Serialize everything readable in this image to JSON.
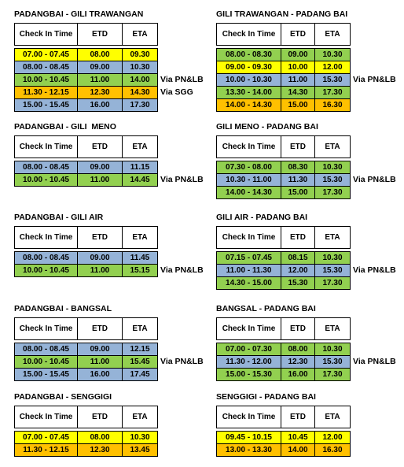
{
  "tables": [
    {
      "title": "PADANGBAI - GILI TRAWANGAN",
      "headers": [
        "Check In Time",
        "ETD",
        "ETA"
      ],
      "rows": [
        {
          "cells": [
            "07.00 - 07.45",
            "08.00",
            "09.30"
          ],
          "color": "#ffff00"
        },
        {
          "cells": [
            "08.00 - 08.45",
            "09.00",
            "10.30"
          ],
          "color": "#95b3d7"
        },
        {
          "cells": [
            "10.00 - 10.45",
            "11.00",
            "14.00"
          ],
          "color": "#92d050",
          "note": "Via PN&LB"
        },
        {
          "cells": [
            "11.30 - 12.15",
            "12.30",
            "14.30"
          ],
          "color": "#ffc000",
          "note": "Via SGG"
        },
        {
          "cells": [
            "15.00 - 15.45",
            "16.00",
            "17.30"
          ],
          "color": "#95b3d7"
        }
      ]
    },
    {
      "title": "GILI TRAWANGAN - PADANG BAI",
      "headers": [
        "Check In Time",
        "ETD",
        "ETA"
      ],
      "rows": [
        {
          "cells": [
            "08.00 - 08.30",
            "09.00",
            "10.30"
          ],
          "color": "#92d050"
        },
        {
          "cells": [
            "09.00 - 09.30",
            "10.00",
            "12.00"
          ],
          "color": "#ffff00"
        },
        {
          "cells": [
            "10.00 - 10.30",
            "11.00",
            "15.30"
          ],
          "color": "#95b3d7",
          "note": "Via PN&LB"
        },
        {
          "cells": [
            "13.30 - 14.00",
            "14.30",
            "17.30"
          ],
          "color": "#92d050"
        },
        {
          "cells": [
            "14.00 - 14.30",
            "15.00",
            "16.30"
          ],
          "color": "#ffc000"
        }
      ]
    },
    {
      "title": "PADANGBAI - GILI  MENO",
      "headers": [
        "Check In Time",
        "ETD",
        "ETA"
      ],
      "rows": [
        {
          "cells": [
            "08.00 - 08.45",
            "09.00",
            "11.15"
          ],
          "color": "#95b3d7"
        },
        {
          "cells": [
            "10.00 - 10.45",
            "11.00",
            "14.45"
          ],
          "color": "#92d050",
          "note": "Via PN&LB"
        }
      ]
    },
    {
      "title": "GILI MENO - PADANG BAI",
      "headers": [
        "Check In Time",
        "ETD",
        "ETA"
      ],
      "rows": [
        {
          "cells": [
            "07.30 - 08.00",
            "08.30",
            "10.30"
          ],
          "color": "#92d050"
        },
        {
          "cells": [
            "10.30 - 11.00",
            "11.30",
            "15.30"
          ],
          "color": "#95b3d7",
          "note": "Via PN&LB"
        },
        {
          "cells": [
            "14.00 - 14.30",
            "15.00",
            "17.30"
          ],
          "color": "#92d050"
        }
      ]
    },
    {
      "title": "PADANGBAI - GILI AIR",
      "headers": [
        "Check In Time",
        "ETD",
        "ETA"
      ],
      "rows": [
        {
          "cells": [
            "08.00 - 08.45",
            "09.00",
            "11.45"
          ],
          "color": "#95b3d7"
        },
        {
          "cells": [
            "10.00 - 10.45",
            "11.00",
            "15.15"
          ],
          "color": "#92d050",
          "note": "Via PN&LB"
        }
      ]
    },
    {
      "title": "GILI AIR - PADANG BAI",
      "headers": [
        "Check In Time",
        "ETD",
        "ETA"
      ],
      "rows": [
        {
          "cells": [
            "07.15 - 07.45",
            "08.15",
            "10.30"
          ],
          "color": "#92d050"
        },
        {
          "cells": [
            "11.00 - 11.30",
            "12.00",
            "15.30"
          ],
          "color": "#95b3d7",
          "note": "Via PN&LB"
        },
        {
          "cells": [
            "14.30 - 15.00",
            "15.30",
            "17.30"
          ],
          "color": "#92d050"
        }
      ]
    },
    {
      "title": "PADANGBAI - BANGSAL",
      "headers": [
        "Check In Time",
        "ETD",
        "ETA"
      ],
      "rows": [
        {
          "cells": [
            "08.00 - 08.45",
            "09.00",
            "12.15"
          ],
          "color": "#95b3d7"
        },
        {
          "cells": [
            "10.00 - 10.45",
            "11.00",
            "15.45"
          ],
          "color": "#92d050",
          "note": "Via PN&LB"
        },
        {
          "cells": [
            "15.00 - 15.45",
            "16.00",
            "17.45"
          ],
          "color": "#95b3d7"
        }
      ]
    },
    {
      "title": "BANGSAL - PADANG BAI",
      "headers": [
        "Check In Time",
        "ETD",
        "ETA"
      ],
      "rows": [
        {
          "cells": [
            "07.00 - 07.30",
            "08.00",
            "10.30"
          ],
          "color": "#92d050"
        },
        {
          "cells": [
            "11.30 - 12.00",
            "12.30",
            "15.30"
          ],
          "color": "#95b3d7",
          "note": "Via PN&LB"
        },
        {
          "cells": [
            "15.00 - 15.30",
            "16.00",
            "17.30"
          ],
          "color": "#92d050"
        }
      ]
    },
    {
      "title": "PADANGBAI - SENGGIGI",
      "headers": [
        "Check In Time",
        "ETD",
        "ETA"
      ],
      "rows": [
        {
          "cells": [
            "07.00 - 07.45",
            "08.00",
            "10.30"
          ],
          "color": "#ffff00"
        },
        {
          "cells": [
            "11.30 - 12.15",
            "12.30",
            "13.45"
          ],
          "color": "#ffc000"
        }
      ]
    },
    {
      "title": "SENGGIGI - PADANG BAI",
      "headers": [
        "Check In Time",
        "ETD",
        "ETA"
      ],
      "rows": [
        {
          "cells": [
            "09.45 - 10.15",
            "10.45",
            "12.00"
          ],
          "color": "#ffff00"
        },
        {
          "cells": [
            "13.00 - 13.30",
            "14.00",
            "16.30"
          ],
          "color": "#ffc000"
        }
      ]
    }
  ]
}
